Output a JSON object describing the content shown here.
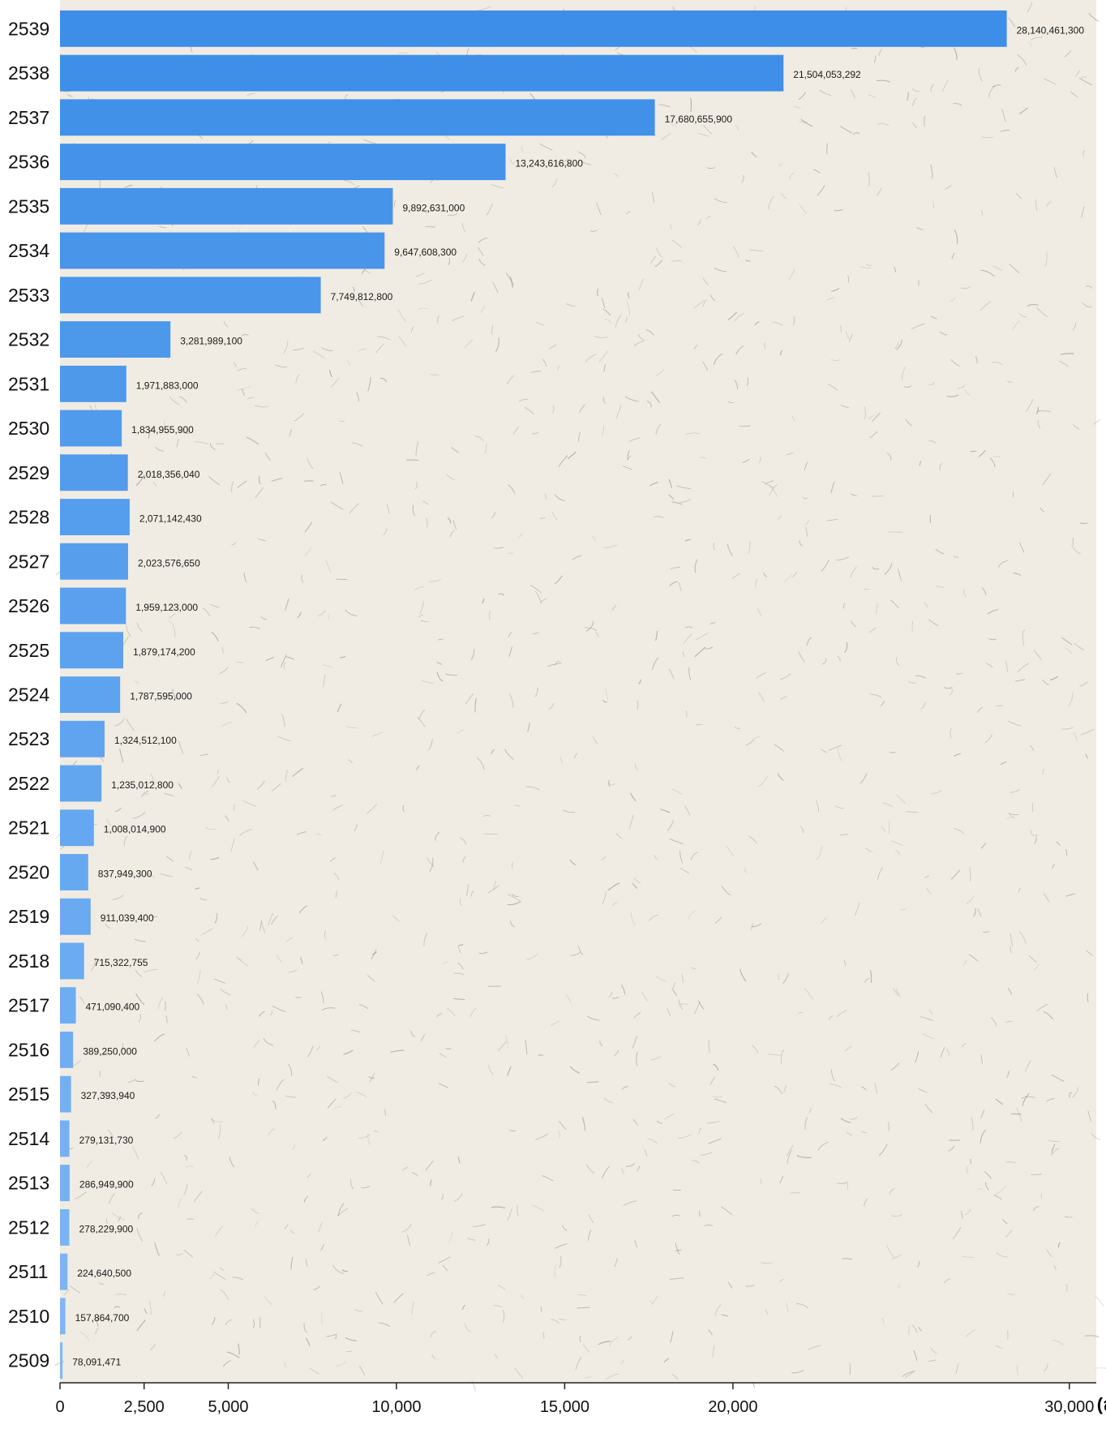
{
  "colors": {
    "bar_top": "#3d8ee8",
    "bar_bottom": "#7fb8f5",
    "background": "#f0ece3",
    "speckle": "#8a8174"
  },
  "chart_data": {
    "type": "bar",
    "orientation": "horizontal",
    "categories": [
      "2539",
      "2538",
      "2537",
      "2536",
      "2535",
      "2534",
      "2533",
      "2532",
      "2531",
      "2530",
      "2529",
      "2528",
      "2527",
      "2526",
      "2525",
      "2524",
      "2523",
      "2522",
      "2521",
      "2520",
      "2519",
      "2518",
      "2517",
      "2516",
      "2515",
      "2514",
      "2513",
      "2512",
      "2511",
      "2510",
      "2509"
    ],
    "values": [
      28140.4613,
      21504.053292,
      17680.6559,
      13243.6168,
      9892.631,
      9647.6083,
      7749.8128,
      3281.9891,
      1971.883,
      1834.9559,
      2018.35604,
      2071.14243,
      2023.57665,
      1959.123,
      1879.1742,
      1787.595,
      1324.5121,
      1235.0128,
      1008.0149,
      837.9493,
      911.0394,
      715.322755,
      471.0904,
      389.25,
      327.39394,
      279.13173,
      286.9499,
      278.2299,
      224.6405,
      157.8647,
      78.091471
    ],
    "value_labels": [
      "28,140,461,300",
      "21,504,053,292",
      "17,680,655,900",
      "13,243,616,800",
      "9,892,631,000",
      "9,647,608,300",
      "7,749,812,800",
      "3,281,989,100",
      "1,971,883,000",
      "1,834,955,900",
      "2,018,356,040",
      "2,071,142,430",
      "2,023,576,650",
      "1,959,123,000",
      "1,879,174,200",
      "1,787,595,000",
      "1,324,512,100",
      "1,235,012,800",
      "1,008,014,900",
      "837,949,300",
      "911,039,400",
      "715,322,755",
      "471,090,400",
      "389,250,000",
      "327,393,940",
      "279,131,730",
      "286,949,900",
      "278,229,900",
      "224,640,500",
      "157,864,700",
      "78,091,471"
    ],
    "x_ticks": [
      0,
      2500,
      5000,
      10000,
      15000,
      20000,
      30000
    ],
    "x_tick_labels": [
      "0",
      "2,500",
      "5,000",
      "10,000",
      "15,000",
      "20,000",
      "30,000"
    ],
    "xlabel": "(ล้านบาท)",
    "xlim": [
      0,
      30800
    ],
    "grid": false
  }
}
